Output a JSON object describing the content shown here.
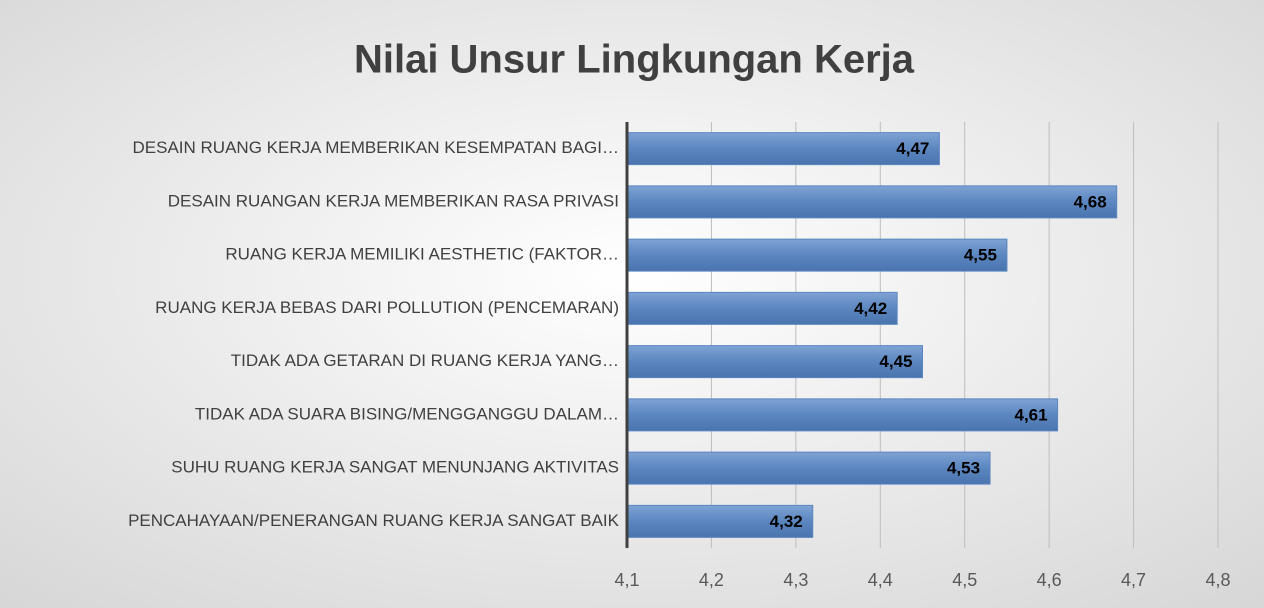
{
  "chart_data": {
    "type": "bar",
    "orientation": "horizontal",
    "title": "Nilai Unsur Lingkungan Kerja",
    "categories": [
      "DESAIN RUANG KERJA MEMBERIKAN KESEMPATAN BAGI…",
      "DESAIN RUANGAN KERJA MEMBERIKAN RASA PRIVASI",
      "RUANG KERJA MEMILIKI AESTHETIC (FAKTOR…",
      "RUANG KERJA BEBAS DARI POLLUTION (PENCEMARAN)",
      "TIDAK ADA GETARAN DI RUANG KERJA YANG…",
      "TIDAK ADA SUARA BISING/MENGGANGGU DALAM…",
      "SUHU RUANG KERJA SANGAT MENUNJANG AKTIVITAS",
      "PENCAHAYAAN/PENERANGAN RUANG KERJA SANGAT BAIK"
    ],
    "values": [
      4.47,
      4.68,
      4.55,
      4.42,
      4.45,
      4.61,
      4.53,
      4.32
    ],
    "value_labels": [
      "4,47",
      "4,68",
      "4,55",
      "4,42",
      "4,45",
      "4,61",
      "4,53",
      "4,32"
    ],
    "color": "#5b86c0",
    "xlim": [
      4.1,
      4.8
    ],
    "xticks": [
      {
        "value": 4.1,
        "label": "4,1"
      },
      {
        "value": 4.2,
        "label": "4,2"
      },
      {
        "value": 4.3,
        "label": "4,3"
      },
      {
        "value": 4.4,
        "label": "4,4"
      },
      {
        "value": 4.5,
        "label": "4,5"
      },
      {
        "value": 4.6,
        "label": "4,6"
      },
      {
        "value": 4.7,
        "label": "4,7"
      },
      {
        "value": 4.8,
        "label": "4,8"
      }
    ],
    "grid": true
  }
}
